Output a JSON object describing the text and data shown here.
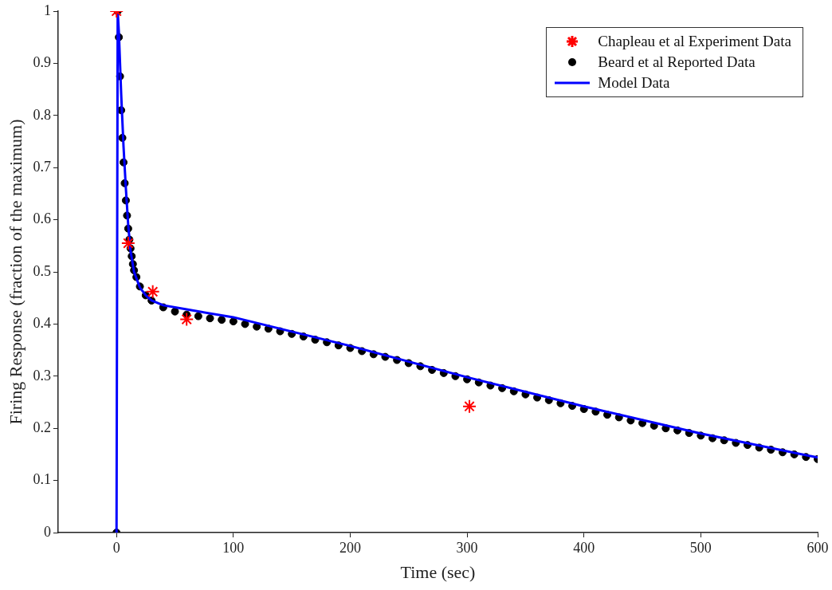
{
  "chart_data": {
    "type": "scatter",
    "xlabel": "Time (sec)",
    "ylabel": "Firing Response (fraction of the maximum)",
    "xlim": [
      -50,
      600
    ],
    "xticks": [
      0,
      100,
      200,
      300,
      400,
      500,
      600
    ],
    "ylim": [
      0,
      1
    ],
    "yticks": [
      0,
      0.1,
      0.2,
      0.3,
      0.4,
      0.5,
      0.6,
      0.7,
      0.8,
      0.9,
      1
    ],
    "grid": false,
    "legend": "top right",
    "series": [
      {
        "name": "Chapleau et al Experiment Data",
        "type": "scatter",
        "marker": "cross",
        "color": "#ff0000",
        "x": [
          0,
          10,
          31,
          60,
          302
        ],
        "values": [
          1,
          0.555,
          0.462,
          0.409,
          0.242
        ]
      },
      {
        "name": "Beard et al Reported Data",
        "type": "scatter",
        "marker": "circle",
        "color": "#000000",
        "x": [
          0,
          1,
          2,
          3,
          4,
          5,
          6,
          7,
          8,
          9,
          10,
          11,
          12,
          13,
          14,
          15,
          17,
          20,
          25,
          30,
          40,
          50,
          60,
          70,
          80,
          90,
          100,
          110,
          120,
          130,
          140,
          150,
          160,
          170,
          180,
          190,
          200,
          210,
          220,
          230,
          240,
          250,
          260,
          270,
          280,
          290,
          300,
          310,
          320,
          330,
          340,
          350,
          360,
          370,
          380,
          390,
          400,
          410,
          420,
          430,
          440,
          450,
          460,
          470,
          480,
          490,
          500,
          510,
          520,
          530,
          540,
          550,
          560,
          570,
          580,
          590,
          600
        ],
        "values": [
          0,
          1,
          0.95,
          0.875,
          0.81,
          0.757,
          0.71,
          0.67,
          0.637,
          0.608,
          0.583,
          0.562,
          0.545,
          0.53,
          0.515,
          0.503,
          0.49,
          0.472,
          0.455,
          0.445,
          0.432,
          0.424,
          0.418,
          0.415,
          0.411,
          0.408,
          0.405,
          0.4,
          0.395,
          0.391,
          0.386,
          0.381,
          0.376,
          0.37,
          0.365,
          0.359,
          0.354,
          0.348,
          0.342,
          0.337,
          0.331,
          0.325,
          0.319,
          0.312,
          0.306,
          0.3,
          0.294,
          0.288,
          0.282,
          0.277,
          0.271,
          0.265,
          0.259,
          0.254,
          0.248,
          0.243,
          0.237,
          0.232,
          0.226,
          0.221,
          0.215,
          0.21,
          0.205,
          0.2,
          0.196,
          0.191,
          0.186,
          0.181,
          0.177,
          0.172,
          0.168,
          0.163,
          0.159,
          0.154,
          0.15,
          0.145,
          0.141
        ]
      },
      {
        "name": "Model Data",
        "type": "line",
        "marker": "none",
        "line_style": "solid",
        "color": "#0000ff",
        "x": [
          0,
          1,
          2,
          4,
          6,
          8,
          10,
          12,
          15,
          20,
          25,
          30,
          40,
          60,
          100,
          200,
          300,
          400,
          500,
          600
        ],
        "values": [
          0,
          1,
          0.96,
          0.84,
          0.74,
          0.66,
          0.59,
          0.54,
          0.5,
          0.47,
          0.455,
          0.445,
          0.436,
          0.428,
          0.413,
          0.358,
          0.298,
          0.242,
          0.19,
          0.144
        ]
      }
    ]
  }
}
